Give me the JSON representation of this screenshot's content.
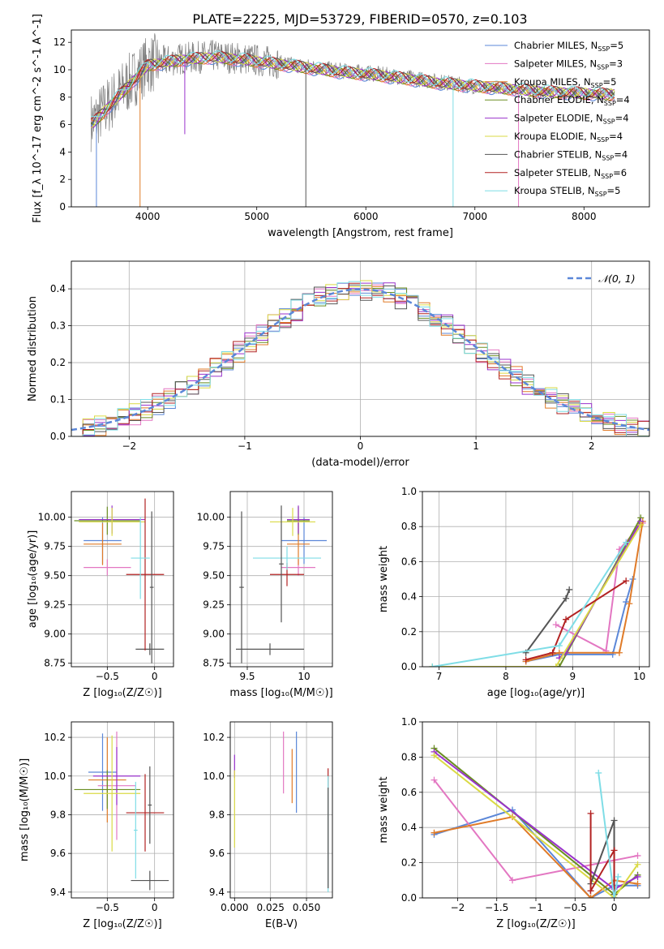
{
  "figure": {
    "title": "PLATE=2225, MJD=53729, FIBERID=0570, z=0.103"
  },
  "legend_spectrum": [
    {
      "label": "Chabrier MILES, N",
      "sub": "SSP",
      "suffix": "=5",
      "color": "#5b87d8"
    },
    {
      "label": "Salpeter MILES, N",
      "sub": "SSP",
      "suffix": "=3",
      "color": "#e377c2"
    },
    {
      "label": "Kroupa MILES, N",
      "sub": "SSP",
      "suffix": "=5",
      "color": "#e07b28"
    },
    {
      "label": "Chabrier ELODIE, N",
      "sub": "SSP",
      "suffix": "=4",
      "color": "#6b8e23"
    },
    {
      "label": "Salpeter ELODIE, N",
      "sub": "SSP",
      "suffix": "=4",
      "color": "#9932cc"
    },
    {
      "label": "Kroupa ELODIE, N",
      "sub": "SSP",
      "suffix": "=4",
      "color": "#dada45"
    },
    {
      "label": "Chabrier STELIB, N",
      "sub": "SSP",
      "suffix": "=4",
      "color": "#555555"
    },
    {
      "label": "Salpeter STELIB, N",
      "sub": "SSP",
      "suffix": "=6",
      "color": "#b22222"
    },
    {
      "label": "Kroupa STELIB, N",
      "sub": "SSP",
      "suffix": "=5",
      "color": "#7fdde6"
    }
  ],
  "chart_data": [
    {
      "id": "spectrum",
      "type": "line",
      "xlabel": "wavelength [Angstrom, rest frame]",
      "ylabel": "Flux [f_λ 10^-17 erg cm^-2 s^-1 A^-1]",
      "xlim": [
        3300,
        8600
      ],
      "ylim": [
        0,
        12.9
      ],
      "xticks": [
        4000,
        5000,
        6000,
        7000,
        8000
      ],
      "yticks": [
        0,
        2,
        4,
        6,
        8,
        10,
        12
      ],
      "grid": false,
      "series": [
        {
          "name": "data",
          "color": "#808080",
          "x": [
            3500,
            3800,
            4000,
            4300,
            4600,
            4900,
            5200,
            5500,
            5800,
            6100,
            6400,
            6700,
            7000,
            7300,
            7600,
            7900,
            8200
          ],
          "y": [
            6.2,
            8.8,
            10.4,
            10.8,
            11.0,
            10.8,
            10.5,
            10.2,
            9.9,
            9.7,
            9.4,
            9.1,
            8.8,
            8.6,
            8.4,
            8.3,
            8.2
          ]
        },
        {
          "name": "model",
          "color": "#7fdde6",
          "x": [
            3500,
            3800,
            4000,
            4300,
            4600,
            4900,
            5200,
            5500,
            5800,
            6100,
            6400,
            6700,
            7000,
            7300,
            7600,
            7900,
            8200
          ],
          "y": [
            6.1,
            8.6,
            10.3,
            10.7,
            10.9,
            10.7,
            10.4,
            10.1,
            9.8,
            9.6,
            9.3,
            9.0,
            8.8,
            8.6,
            8.4,
            8.3,
            8.2
          ]
        }
      ]
    },
    {
      "id": "residuals",
      "type": "line",
      "xlabel": "(data-model)/error",
      "ylabel": "Normed distribution",
      "xlim": [
        -2.5,
        2.5
      ],
      "ylim": [
        0,
        0.475
      ],
      "xticks": [
        -2,
        -1,
        0,
        1,
        2
      ],
      "yticks": [
        0.0,
        0.1,
        0.2,
        0.3,
        0.4
      ],
      "grid": true,
      "legend": [
        "𝒩(0, 1)"
      ],
      "legend_position": "top-right",
      "gaussian": {
        "mu": 0,
        "sigma": 1,
        "color": "#5b87d8"
      },
      "histogram_colors": [
        "#5b87d8",
        "#e377c2",
        "#e07b28",
        "#6b8e23",
        "#9932cc",
        "#dada45",
        "#555555",
        "#b22222",
        "#7fdde6"
      ]
    },
    {
      "id": "age-vs-Z",
      "type": "scatter",
      "xlabel": "Z [log₁₀(Z/Z☉)]",
      "ylabel": "age  [log₁₀(age/yr)]",
      "xlim": [
        -0.88,
        0.2
      ],
      "ylim": [
        8.72,
        10.22
      ],
      "xticks": [
        -0.5,
        0.0
      ],
      "yticks": [
        8.75,
        9.0,
        9.25,
        9.5,
        9.75,
        10.0
      ],
      "grid": true,
      "points": [
        {
          "x": -0.55,
          "y": 9.8,
          "xerr": 0.2,
          "yerr": 0.2,
          "color": "#5b87d8"
        },
        {
          "x": -0.5,
          "y": 9.57,
          "xerr": 0.25,
          "yerr": 0.07,
          "color": "#e377c2"
        },
        {
          "x": -0.55,
          "y": 9.77,
          "xerr": 0.2,
          "yerr": 0.18,
          "color": "#e07b28"
        },
        {
          "x": -0.5,
          "y": 9.97,
          "xerr": 0.35,
          "yerr": 0.12,
          "color": "#6b8e23"
        },
        {
          "x": -0.45,
          "y": 9.98,
          "xerr": 0.35,
          "yerr": 0.12,
          "color": "#9932cc"
        },
        {
          "x": -0.45,
          "y": 9.96,
          "xerr": 0.35,
          "yerr": 0.12,
          "color": "#dada45"
        },
        {
          "x": -0.05,
          "y": 8.87,
          "xerr": 0.15,
          "yerr": 0.05,
          "color": "#555555"
        },
        {
          "x": -0.1,
          "y": 9.51,
          "xerr": 0.2,
          "yerr": 0.65,
          "color": "#b22222"
        },
        {
          "x": -0.15,
          "y": 9.65,
          "xerr": 0.1,
          "yerr": 0.35,
          "color": "#7fdde6"
        },
        {
          "x": -0.03,
          "y": 9.4,
          "xerr": 0.02,
          "yerr": 0.65,
          "color": "#555555"
        }
      ]
    },
    {
      "id": "age-vs-mass",
      "type": "scatter",
      "xlabel": "mass [log₁₀(M/M☉)]",
      "ylabel": "",
      "xlim": [
        9.35,
        10.25
      ],
      "ylim": [
        8.72,
        10.22
      ],
      "xticks": [
        9.5,
        10.0
      ],
      "yticks": [
        8.75,
        9.0,
        9.25,
        9.5,
        9.75,
        10.0
      ],
      "grid": true,
      "points": [
        {
          "x": 10.0,
          "y": 9.8,
          "xerr": 0.2,
          "yerr": 0.2,
          "color": "#5b87d8"
        },
        {
          "x": 9.95,
          "y": 9.57,
          "xerr": 0.15,
          "yerr": 0.07,
          "color": "#e377c2"
        },
        {
          "x": 9.95,
          "y": 9.77,
          "xerr": 0.1,
          "yerr": 0.18,
          "color": "#e07b28"
        },
        {
          "x": 9.95,
          "y": 9.97,
          "xerr": 0.1,
          "yerr": 0.12,
          "color": "#6b8e23"
        },
        {
          "x": 9.95,
          "y": 9.98,
          "xerr": 0.1,
          "yerr": 0.12,
          "color": "#9932cc"
        },
        {
          "x": 9.9,
          "y": 9.96,
          "xerr": 0.2,
          "yerr": 0.12,
          "color": "#dada45"
        },
        {
          "x": 9.7,
          "y": 8.87,
          "xerr": 0.3,
          "yerr": 0.05,
          "color": "#555555"
        },
        {
          "x": 9.85,
          "y": 9.51,
          "xerr": 0.15,
          "yerr": 0.1,
          "color": "#b22222"
        },
        {
          "x": 9.85,
          "y": 9.65,
          "xerr": 0.3,
          "yerr": 0.1,
          "color": "#7fdde6"
        },
        {
          "x": 9.45,
          "y": 9.4,
          "xerr": 0.02,
          "yerr": 0.65,
          "color": "#555555"
        },
        {
          "x": 9.8,
          "y": 9.6,
          "xerr": 0.02,
          "yerr": 0.5,
          "color": "#555555"
        }
      ]
    },
    {
      "id": "mass-weight-vs-age",
      "type": "line",
      "xlabel": "age  [log₁₀(age/yr)]",
      "ylabel": "mass weight",
      "xlim": [
        6.75,
        10.15
      ],
      "ylim": [
        0,
        1.0
      ],
      "xticks": [
        7,
        8,
        9,
        10
      ],
      "yticks": [
        0.0,
        0.2,
        0.4,
        0.6,
        0.8,
        1.0
      ],
      "grid": true,
      "series": [
        {
          "color": "#5b87d8",
          "x": [
            8.3,
            8.8,
            9.6,
            9.8,
            9.9
          ],
          "y": [
            0.03,
            0.07,
            0.07,
            0.37,
            0.5
          ]
        },
        {
          "color": "#e377c2",
          "x": [
            8.75,
            9.5,
            9.7,
            10.05
          ],
          "y": [
            0.24,
            0.09,
            0.67,
            0.82
          ]
        },
        {
          "color": "#e07b28",
          "x": [
            8.3,
            8.8,
            9.7,
            9.85,
            10.05
          ],
          "y": [
            0.03,
            0.08,
            0.08,
            0.36,
            0.83
          ]
        },
        {
          "color": "#6b8e23",
          "x": [
            6.9,
            8.8,
            10.02
          ],
          "y": [
            0.0,
            0.0,
            0.85
          ]
        },
        {
          "color": "#9932cc",
          "x": [
            8.8,
            8.9,
            10.02
          ],
          "y": [
            0.05,
            0.08,
            0.83
          ]
        },
        {
          "color": "#dada45",
          "x": [
            6.9,
            8.75,
            10.02
          ],
          "y": [
            0.0,
            0.0,
            0.81
          ]
        },
        {
          "color": "#555555",
          "x": [
            8.3,
            8.9,
            8.95
          ],
          "y": [
            0.08,
            0.39,
            0.44
          ]
        },
        {
          "color": "#b22222",
          "x": [
            8.3,
            8.7,
            8.9,
            9.8
          ],
          "y": [
            0.04,
            0.08,
            0.27,
            0.49
          ]
        },
        {
          "color": "#7fdde6",
          "x": [
            6.9,
            8.8,
            9.8
          ],
          "y": [
            0.0,
            0.12,
            0.71
          ]
        }
      ]
    },
    {
      "id": "mass-vs-Z",
      "type": "scatter",
      "xlabel": "Z [log₁₀(Z/Z☉)]",
      "ylabel": "mass [log₁₀(M/M☉)]",
      "xlim": [
        -0.88,
        0.2
      ],
      "ylim": [
        9.37,
        10.28
      ],
      "xticks": [
        -0.5,
        0.0
      ],
      "yticks": [
        9.4,
        9.6,
        9.8,
        10.0,
        10.2
      ],
      "grid": true,
      "points": [
        {
          "x": -0.55,
          "y": 10.02,
          "xerr": 0.15,
          "yerr": 0.2,
          "color": "#5b87d8"
        },
        {
          "x": -0.4,
          "y": 9.95,
          "xerr": 0.2,
          "yerr": 0.28,
          "color": "#e377c2"
        },
        {
          "x": -0.5,
          "y": 9.98,
          "xerr": 0.2,
          "yerr": 0.22,
          "color": "#e07b28"
        },
        {
          "x": -0.5,
          "y": 9.93,
          "xerr": 0.35,
          "yerr": 0.1,
          "color": "#6b8e23"
        },
        {
          "x": -0.4,
          "y": 10.0,
          "xerr": 0.25,
          "yerr": 0.15,
          "color": "#9932cc"
        },
        {
          "x": -0.45,
          "y": 9.91,
          "xerr": 0.3,
          "yerr": 0.3,
          "color": "#dada45"
        },
        {
          "x": -0.05,
          "y": 9.46,
          "xerr": 0.2,
          "yerr": 0.05,
          "color": "#555555"
        },
        {
          "x": -0.1,
          "y": 9.81,
          "xerr": 0.2,
          "yerr": 0.2,
          "color": "#b22222"
        },
        {
          "x": -0.2,
          "y": 9.72,
          "xerr": 0.02,
          "yerr": 0.25,
          "color": "#7fdde6"
        },
        {
          "x": -0.05,
          "y": 9.85,
          "xerr": 0.02,
          "yerr": 0.2,
          "color": "#555555"
        }
      ]
    },
    {
      "id": "mass-vs-EBV",
      "type": "scatter",
      "xlabel": "E(B-V)",
      "ylabel": "",
      "xlim": [
        -0.003,
        0.068
      ],
      "ylim": [
        9.37,
        10.28
      ],
      "xticks": [
        0.0,
        0.025,
        0.05
      ],
      "xtick_labels": [
        "0.000",
        "0.025",
        "0.050"
      ],
      "yticks": [
        9.4,
        9.6,
        9.8,
        10.0,
        10.2
      ],
      "grid": true,
      "points": [
        {
          "x": 0.0,
          "y": 10.05,
          "yerr": 0.06,
          "color": "#9932cc"
        },
        {
          "x": 0.0,
          "y": 9.83,
          "yerr": 0.2,
          "color": "#dada45"
        },
        {
          "x": 0.034,
          "y": 10.07,
          "yerr": 0.16,
          "color": "#e377c2"
        },
        {
          "x": 0.04,
          "y": 10.0,
          "yerr": 0.14,
          "color": "#e07b28"
        },
        {
          "x": 0.043,
          "y": 10.02,
          "yerr": 0.21,
          "color": "#5b87d8"
        },
        {
          "x": 0.065,
          "y": 9.73,
          "yerr": 0.31,
          "color": "#b22222"
        },
        {
          "x": 0.065,
          "y": 9.7,
          "yerr": 0.3,
          "color": "#7fdde6"
        },
        {
          "x": 0.065,
          "y": 9.68,
          "yerr": 0.26,
          "color": "#555555"
        }
      ]
    },
    {
      "id": "mass-weight-vs-Z",
      "type": "line",
      "xlabel": "Z [log₁₀(Z/Z☉)]",
      "ylabel": "mass weight",
      "xlim": [
        -2.45,
        0.45
      ],
      "ylim": [
        0,
        1.0
      ],
      "xticks": [
        -2.0,
        -1.5,
        -1.0,
        -0.5,
        0.0
      ],
      "yticks": [
        0.0,
        0.2,
        0.4,
        0.6,
        0.8,
        1.0
      ],
      "grid": true,
      "series": [
        {
          "color": "#5b87d8",
          "x": [
            -2.3,
            -1.3,
            -0.3,
            0.0,
            0.3
          ],
          "y": [
            0.36,
            0.5,
            0.0,
            0.07,
            0.07
          ]
        },
        {
          "color": "#e377c2",
          "x": [
            -2.3,
            -1.3,
            0.3
          ],
          "y": [
            0.67,
            0.1,
            0.24
          ]
        },
        {
          "color": "#e07b28",
          "x": [
            -2.3,
            -1.3,
            -0.3,
            0.0,
            0.3
          ],
          "y": [
            0.37,
            0.46,
            0.0,
            0.1,
            0.08
          ]
        },
        {
          "color": "#6b8e23",
          "x": [
            -2.3,
            0.0,
            0.3
          ],
          "y": [
            0.85,
            0.02,
            0.13
          ]
        },
        {
          "color": "#9932cc",
          "x": [
            -2.3,
            0.0,
            0.3
          ],
          "y": [
            0.83,
            0.05,
            0.12
          ]
        },
        {
          "color": "#dada45",
          "x": [
            -2.3,
            0.0,
            0.3
          ],
          "y": [
            0.81,
            0.0,
            0.19
          ]
        },
        {
          "color": "#555555",
          "x": [
            -0.3,
            0.0,
            0.0
          ],
          "y": [
            0.08,
            0.44,
            0.02
          ]
        },
        {
          "color": "#b22222",
          "x": [
            -0.3,
            -0.3,
            0.0,
            0.0
          ],
          "y": [
            0.48,
            0.04,
            0.27,
            0.0
          ]
        },
        {
          "color": "#7fdde6",
          "x": [
            -0.2,
            0.0,
            0.05
          ],
          "y": [
            0.71,
            0.0,
            0.12
          ]
        }
      ]
    }
  ]
}
